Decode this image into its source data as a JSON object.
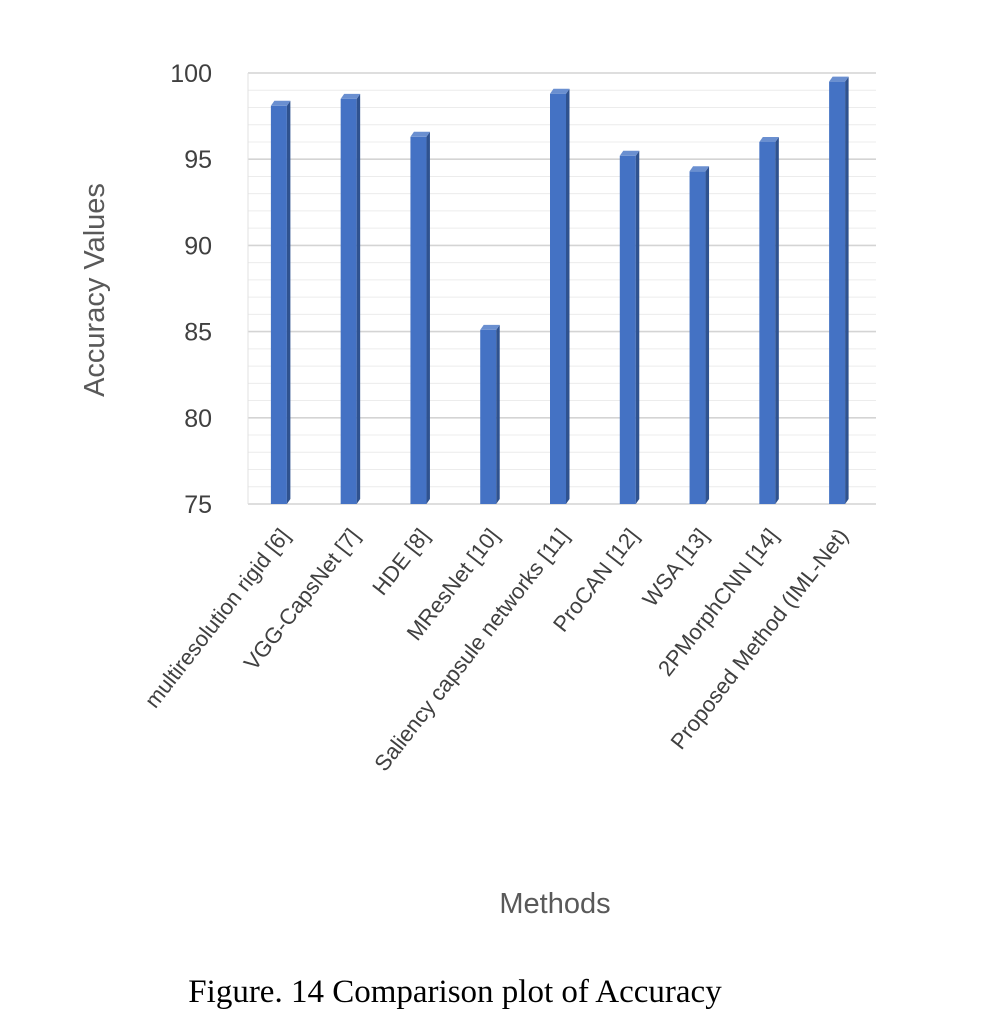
{
  "chart_data": {
    "type": "bar",
    "title": "",
    "xlabel": "Methods",
    "ylabel": "Accuracy Values",
    "ylim": [
      75,
      100
    ],
    "yticks": [
      75,
      80,
      85,
      90,
      95,
      100
    ],
    "grid": true,
    "legend": "none",
    "categories": [
      "multiresolution rigid [6]",
      "VGG-CapsNet [7]",
      "HDE [8]",
      "MResNet [10]",
      "Saliency capsule networks [11]",
      "ProCAN [12]",
      "WSA [13]",
      "2PMorphCNN [14]",
      "Proposed Method (IML-Net)"
    ],
    "values": [
      98.1,
      98.5,
      96.3,
      85.1,
      98.8,
      95.2,
      94.3,
      96.0,
      99.5
    ],
    "bar_color": "#4472C4",
    "bar_side_color": "#2F528F",
    "bar_top_color": "#6A8FD0"
  },
  "caption": "Figure. 14 Comparison plot of Accuracy"
}
